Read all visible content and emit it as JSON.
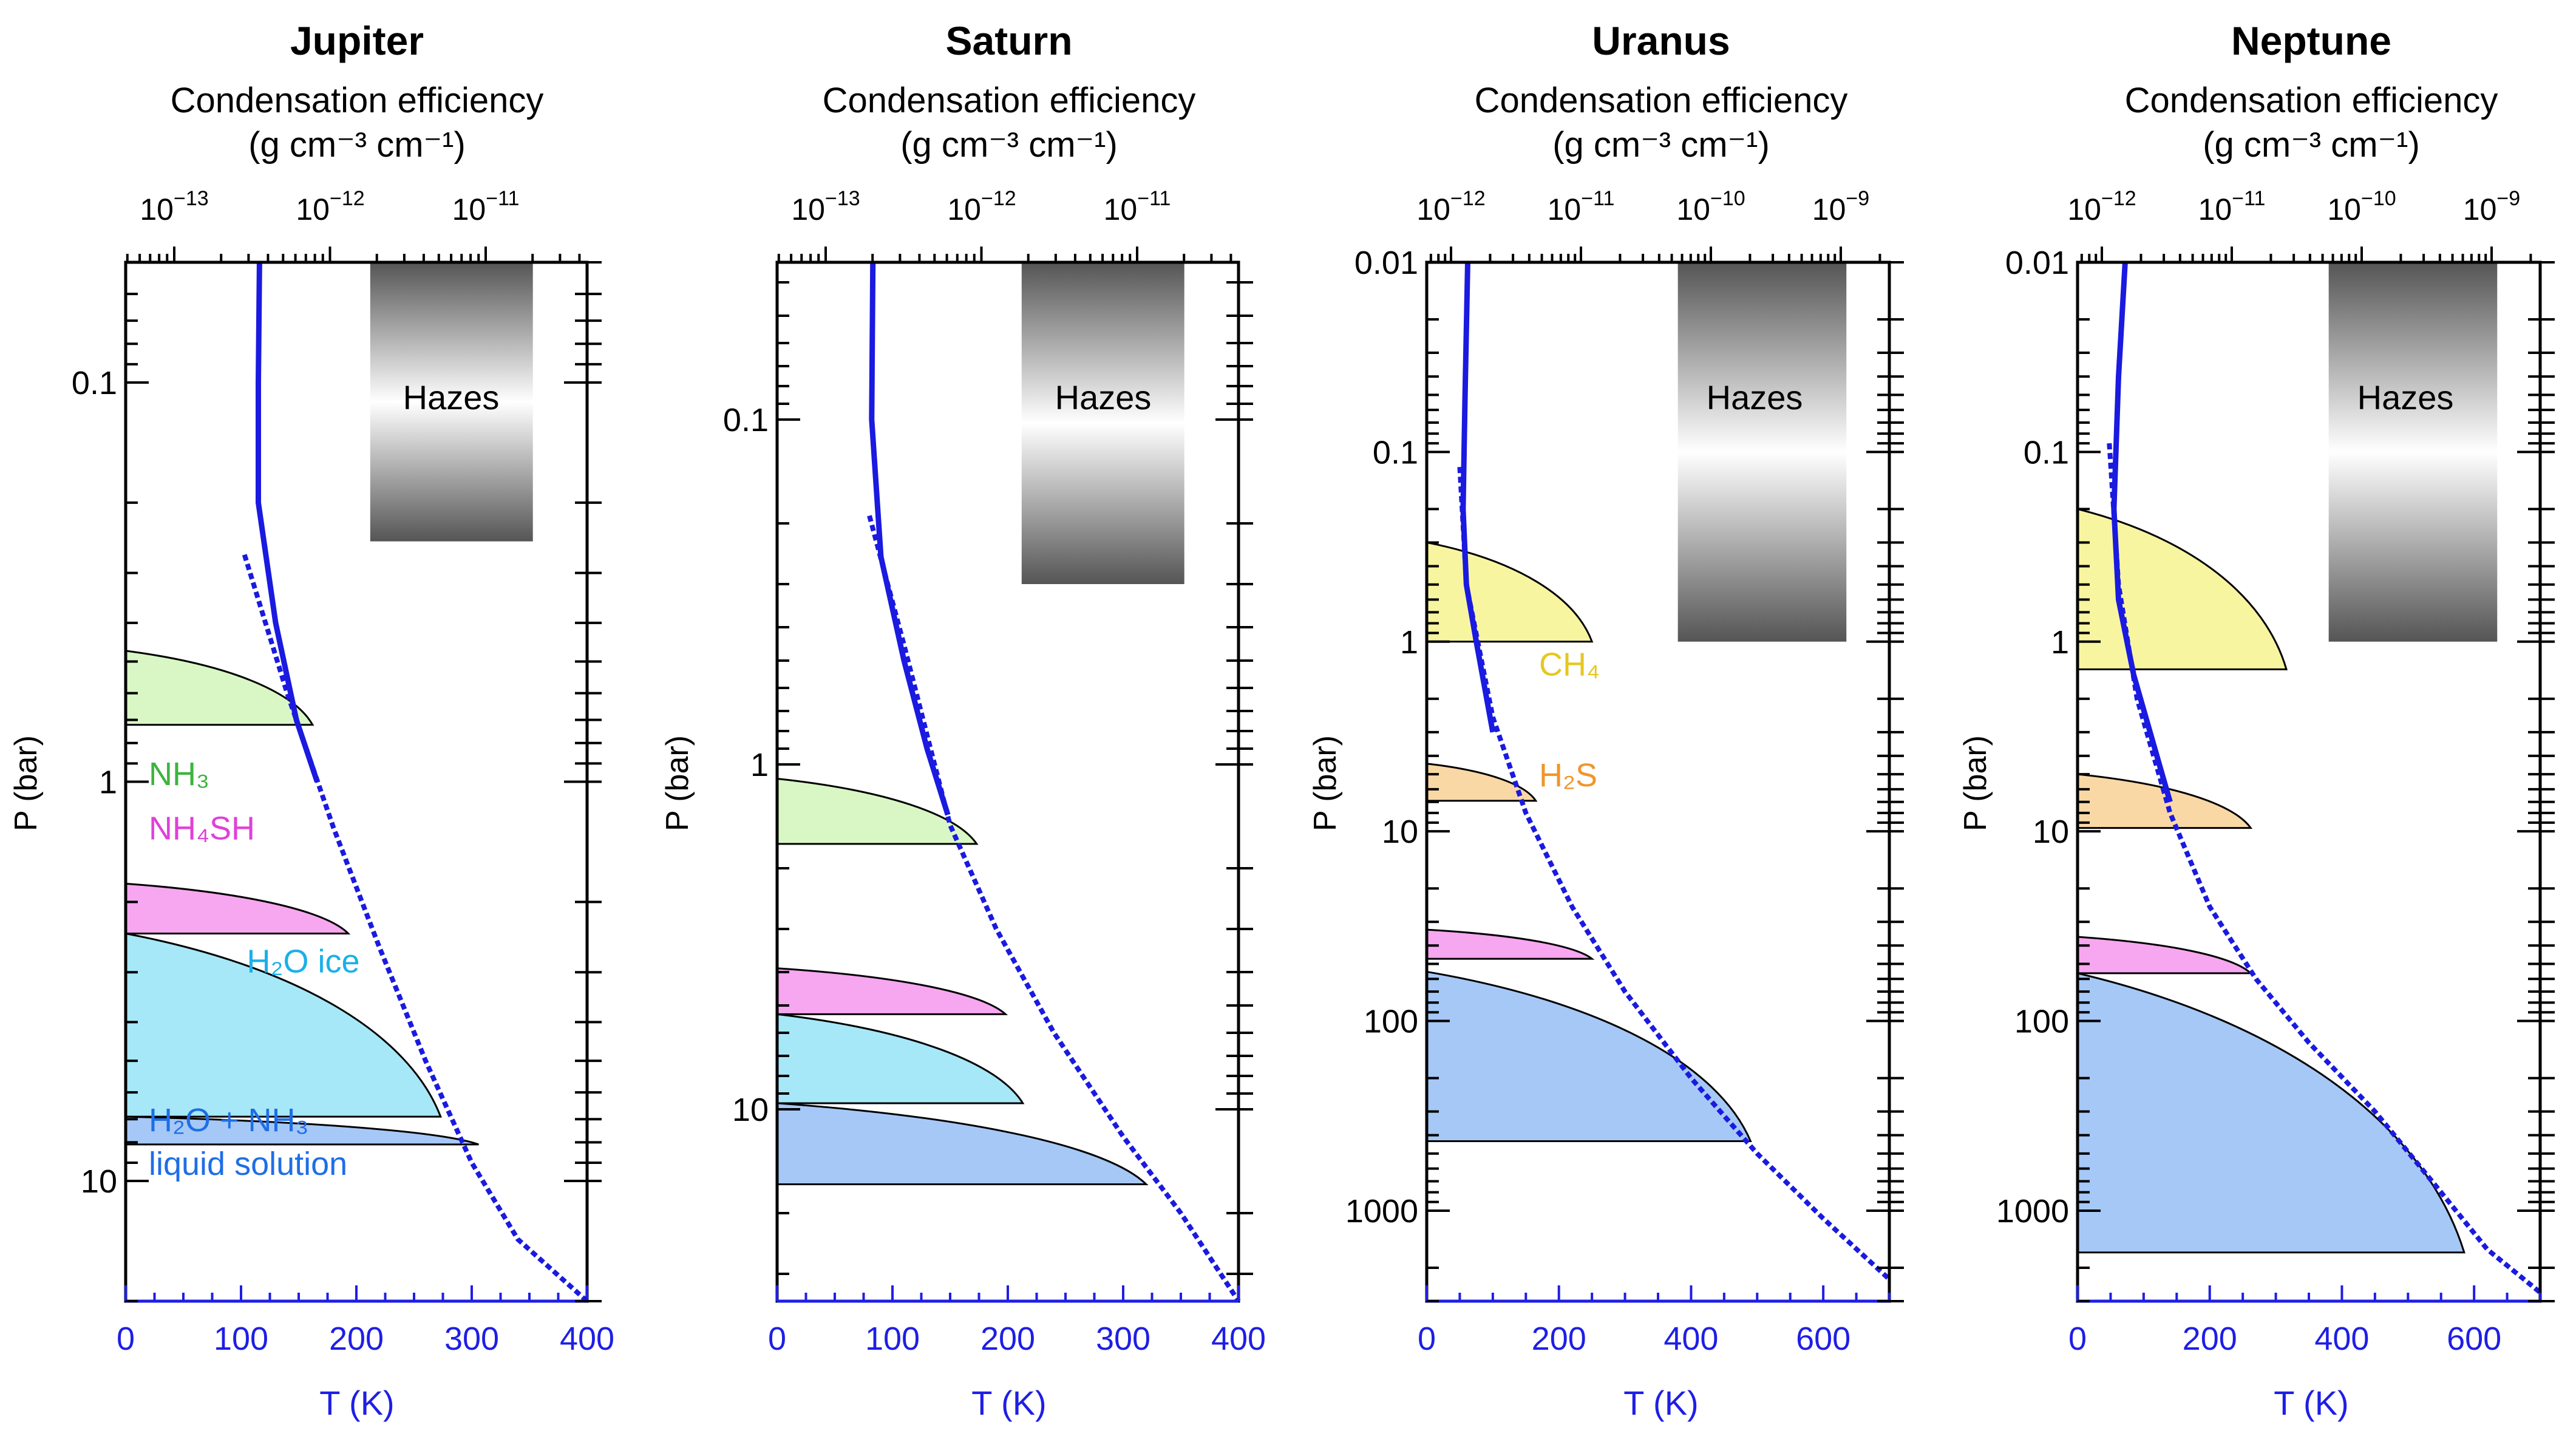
{
  "colors": {
    "axis_blue": "#1e1ee6",
    "profile_blue": "#1a1ae0",
    "nh3": "#d9f7c4",
    "nh3_text": "#3cb43c",
    "nh4sh": "#f7a6f0",
    "nh4sh_text": "#e040d8",
    "h2o_ice": "#a6e8f8",
    "h2o_ice_text": "#1ab0e8",
    "h2o_liquid": "#a6c8f7",
    "h2o_liquid_text": "#1e6ee6",
    "ch4": "#f8f5a0",
    "ch4_text": "#e6c81e",
    "h2s": "#fad8a6",
    "h2s_text": "#f0962a"
  },
  "common": {
    "top_axis_label_line1": "Condensation efficiency",
    "top_axis_label_line2": "(g cm⁻³ cm⁻¹)",
    "y_label": "P (bar)",
    "x_label": "T (K)",
    "haze_label": "Hazes"
  },
  "chart_data": [
    {
      "type": "line",
      "title": "Jupiter",
      "xlim": [
        0,
        400
      ],
      "x_ticks": [
        0,
        100,
        200,
        300,
        400
      ],
      "x_tick_labels": [
        "0",
        "100",
        "200",
        "300",
        "400"
      ],
      "y_scale": "log",
      "ylim": [
        0.05,
        20
      ],
      "y_ticks": [
        0.1,
        1,
        10
      ],
      "y_tick_labels": [
        "0.1",
        "1",
        "10"
      ],
      "top_ticks": [
        -13,
        -12,
        -11
      ],
      "top_tick_labels": [
        {
          "base": "10",
          "exp": "−13"
        },
        {
          "base": "10",
          "exp": "−12"
        },
        {
          "base": "10",
          "exp": "−11"
        }
      ],
      "haze_band": {
        "t_range": [
          212,
          353
        ],
        "p_range": [
          0.05,
          0.25
        ]
      },
      "profile_solid": [
        [
          116,
          0.05
        ],
        [
          115,
          0.1
        ],
        [
          115,
          0.2
        ],
        [
          130,
          0.4
        ],
        [
          148,
          0.7
        ],
        [
          166,
          1.0
        ]
      ],
      "profile_dashed": [
        [
          103,
          0.27
        ],
        [
          140,
          0.6
        ],
        [
          180,
          1.3
        ],
        [
          220,
          2.6
        ],
        [
          260,
          5.0
        ],
        [
          300,
          9.0
        ],
        [
          340,
          14
        ],
        [
          400,
          20
        ]
      ],
      "clouds": [
        {
          "label": "NH₃",
          "color_key": "nh3",
          "text_key": "nh3_text",
          "base_p": 0.72,
          "top_p": 0.47,
          "tip_t": 162,
          "label_t": 20,
          "label_p": 0.95
        },
        {
          "label": "NH₄SH",
          "color_key": "nh4sh",
          "text_key": "nh4sh_text",
          "base_p": 2.4,
          "top_p": 1.8,
          "tip_t": 193,
          "label_t": 20,
          "label_p": 1.3
        },
        {
          "label": "H₂O ice",
          "color_key": "h2o_ice",
          "text_key": "h2o_ice_text",
          "base_p": 6.9,
          "top_p": 2.4,
          "tip_t": 273,
          "label_t": 105,
          "label_p": 2.8
        },
        {
          "label": "H₂O + NH₃",
          "label2": "liquid solution",
          "color_key": "h2o_liquid",
          "text_key": "h2o_liquid_text",
          "base_p": 8.1,
          "top_p": 6.9,
          "tip_t": 306,
          "label_t": 20,
          "label_p": 7.0
        }
      ]
    },
    {
      "type": "line",
      "title": "Saturn",
      "xlim": [
        0,
        400
      ],
      "x_ticks": [
        0,
        100,
        200,
        300,
        400
      ],
      "x_tick_labels": [
        "0",
        "100",
        "200",
        "300",
        "400"
      ],
      "y_scale": "log",
      "ylim": [
        0.035,
        36
      ],
      "y_ticks": [
        0.1,
        1,
        10
      ],
      "y_tick_labels": [
        "0.1",
        "1",
        "10"
      ],
      "top_ticks": [
        -13,
        -12,
        -11
      ],
      "top_tick_labels": [
        {
          "base": "10",
          "exp": "−13"
        },
        {
          "base": "10",
          "exp": "−12"
        },
        {
          "base": "10",
          "exp": "−11"
        }
      ],
      "haze_band": {
        "t_range": [
          212,
          353
        ],
        "p_range": [
          0.035,
          0.3
        ]
      },
      "profile_solid": [
        [
          83,
          0.035
        ],
        [
          82,
          0.1
        ],
        [
          90,
          0.25
        ],
        [
          110,
          0.5
        ],
        [
          130,
          0.9
        ],
        [
          148,
          1.4
        ]
      ],
      "profile_dashed": [
        [
          80,
          0.19
        ],
        [
          110,
          0.45
        ],
        [
          150,
          1.5
        ],
        [
          190,
          3.0
        ],
        [
          240,
          6.0
        ],
        [
          300,
          12
        ],
        [
          350,
          20
        ],
        [
          400,
          36
        ]
      ],
      "clouds": [
        {
          "label": "",
          "color_key": "nh3",
          "text_key": "nh3_text",
          "base_p": 1.7,
          "top_p": 1.1,
          "tip_t": 173
        },
        {
          "label": "",
          "color_key": "nh4sh",
          "text_key": "nh4sh_text",
          "base_p": 5.3,
          "top_p": 3.9,
          "tip_t": 198
        },
        {
          "label": "",
          "color_key": "h2o_ice",
          "text_key": "h2o_ice_text",
          "base_p": 9.6,
          "top_p": 5.3,
          "tip_t": 213
        },
        {
          "label": "",
          "color_key": "h2o_liquid",
          "text_key": "h2o_liquid_text",
          "base_p": 16.5,
          "top_p": 9.6,
          "tip_t": 320
        }
      ]
    },
    {
      "type": "line",
      "title": "Uranus",
      "xlim": [
        0,
        700
      ],
      "x_ticks": [
        0,
        200,
        400,
        600
      ],
      "x_tick_labels": [
        "0",
        "200",
        "400",
        "600"
      ],
      "y_scale": "log",
      "ylim": [
        0.01,
        3000
      ],
      "y_ticks": [
        0.01,
        0.1,
        1,
        10,
        100,
        1000
      ],
      "y_tick_labels": [
        "0.01",
        "0.1",
        "1",
        "10",
        "100",
        "1000"
      ],
      "top_ticks": [
        -12,
        -11,
        -10,
        -9
      ],
      "top_tick_labels": [
        {
          "base": "10",
          "exp": "−12"
        },
        {
          "base": "10",
          "exp": "−11"
        },
        {
          "base": "10",
          "exp": "−10"
        },
        {
          "base": "10",
          "exp": "−9"
        }
      ],
      "haze_band": {
        "t_range": [
          380,
          635
        ],
        "p_range": [
          0.01,
          1.0
        ]
      },
      "profile_solid": [
        [
          62,
          0.01
        ],
        [
          58,
          0.05
        ],
        [
          55,
          0.2
        ],
        [
          60,
          0.5
        ],
        [
          75,
          1.0
        ],
        [
          100,
          3.0
        ]
      ],
      "profile_dashed": [
        [
          50,
          0.12
        ],
        [
          60,
          0.5
        ],
        [
          100,
          2.5
        ],
        [
          150,
          8
        ],
        [
          220,
          25
        ],
        [
          300,
          70
        ],
        [
          400,
          200
        ],
        [
          500,
          500
        ],
        [
          600,
          1100
        ],
        [
          700,
          2300
        ]
      ],
      "clouds": [
        {
          "label": "CH₄",
          "color_key": "ch4",
          "text_key": "ch4_text",
          "base_p": 1.0,
          "top_p": 0.3,
          "tip_t": 250,
          "label_t": 170,
          "label_p": 1.3
        },
        {
          "label": "H₂S",
          "color_key": "h2s",
          "text_key": "h2s_text",
          "base_p": 6.9,
          "top_p": 4.4,
          "tip_t": 165,
          "label_t": 170,
          "label_p": 5.0
        },
        {
          "label": "",
          "color_key": "nh4sh",
          "text_key": "nh4sh_text",
          "base_p": 47,
          "top_p": 33,
          "tip_t": 250
        },
        {
          "label": "",
          "color_key": "h2o_liquid",
          "text_key": "h2o_liquid_text",
          "base_p": 430,
          "top_p": 55,
          "tip_t": 490
        }
      ]
    },
    {
      "type": "line",
      "title": "Neptune",
      "xlim": [
        0,
        700
      ],
      "x_ticks": [
        0,
        200,
        400,
        600
      ],
      "x_tick_labels": [
        "0",
        "200",
        "400",
        "600"
      ],
      "y_scale": "log",
      "ylim": [
        0.01,
        3000
      ],
      "y_ticks": [
        0.01,
        0.1,
        1,
        10,
        100,
        1000
      ],
      "y_tick_labels": [
        "0.01",
        "0.1",
        "1",
        "10",
        "100",
        "1000"
      ],
      "top_ticks": [
        -12,
        -11,
        -10,
        -9
      ],
      "top_tick_labels": [
        {
          "base": "10",
          "exp": "−12"
        },
        {
          "base": "10",
          "exp": "−11"
        },
        {
          "base": "10",
          "exp": "−10"
        },
        {
          "base": "10",
          "exp": "−9"
        }
      ],
      "haze_band": {
        "t_range": [
          380,
          635
        ],
        "p_range": [
          0.01,
          1.0
        ]
      },
      "profile_solid": [
        [
          72,
          0.01
        ],
        [
          62,
          0.04
        ],
        [
          55,
          0.2
        ],
        [
          62,
          0.6
        ],
        [
          85,
          1.5
        ],
        [
          140,
          7.0
        ]
      ],
      "profile_dashed": [
        [
          48,
          0.09
        ],
        [
          62,
          0.5
        ],
        [
          90,
          2.0
        ],
        [
          140,
          8
        ],
        [
          200,
          25
        ],
        [
          270,
          60
        ],
        [
          350,
          130
        ],
        [
          450,
          300
        ],
        [
          550,
          800
        ],
        [
          620,
          1600
        ],
        [
          700,
          2700
        ]
      ],
      "clouds": [
        {
          "label": "",
          "color_key": "ch4",
          "text_key": "ch4_text",
          "base_p": 1.4,
          "top_p": 0.2,
          "tip_t": 316
        },
        {
          "label": "",
          "color_key": "h2s",
          "text_key": "h2s_text",
          "base_p": 9.6,
          "top_p": 5.0,
          "tip_t": 262
        },
        {
          "label": "",
          "color_key": "nh4sh",
          "text_key": "nh4sh_text",
          "base_p": 56,
          "top_p": 36,
          "tip_t": 262
        },
        {
          "label": "",
          "color_key": "h2o_liquid",
          "text_key": "h2o_liquid_text",
          "base_p": 1660,
          "top_p": 56,
          "tip_t": 585
        }
      ]
    }
  ]
}
